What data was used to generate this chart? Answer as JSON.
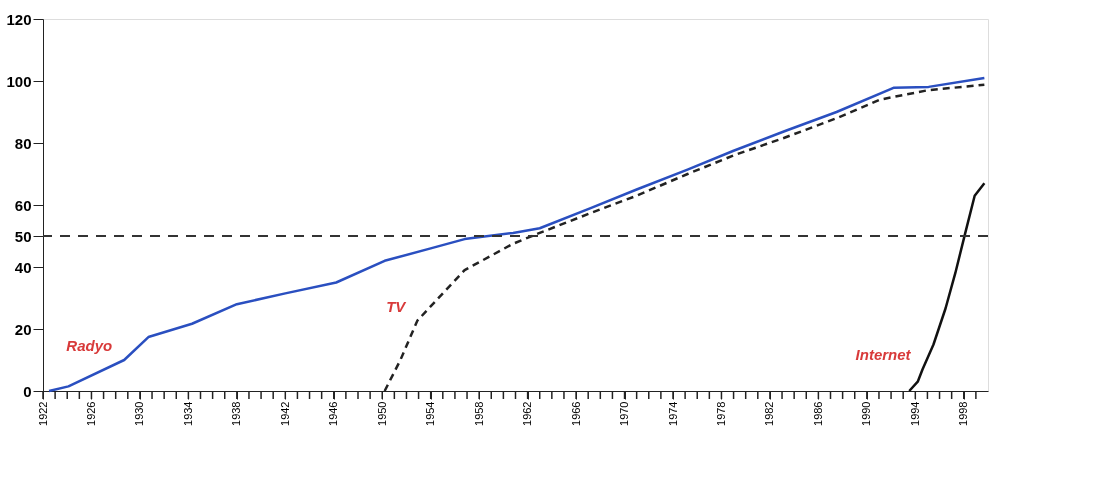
{
  "chart_data": {
    "type": "line",
    "xlim": [
      1922,
      2000
    ],
    "ylim": [
      0,
      120
    ],
    "yticks": [
      0,
      20,
      40,
      50,
      60,
      80,
      100,
      120
    ],
    "xticks": [
      1922,
      {
        "value": 1923,
        "label": null
      },
      {
        "value": 1924,
        "label": null
      },
      {
        "value": 1925,
        "label": null
      },
      1926,
      {
        "value": 1927,
        "label": null
      },
      {
        "value": 1928,
        "label": null
      },
      {
        "value": 1929,
        "label": null
      },
      1930,
      {
        "value": 1931,
        "label": null
      },
      {
        "value": 1932,
        "label": null
      },
      {
        "value": 1933,
        "label": null
      },
      1934,
      {
        "value": 1935,
        "label": null
      },
      {
        "value": 1936,
        "label": null
      },
      {
        "value": 1937,
        "label": null
      },
      1938,
      {
        "value": 1939,
        "label": null
      },
      {
        "value": 1940,
        "label": null
      },
      {
        "value": 1941,
        "label": null
      },
      1942,
      {
        "value": 1943,
        "label": null
      },
      {
        "value": 1944,
        "label": null
      },
      {
        "value": 1945,
        "label": null
      },
      1946,
      {
        "value": 1947,
        "label": null
      },
      {
        "value": 1948,
        "label": null
      },
      {
        "value": 1949,
        "label": null
      },
      1950,
      {
        "value": 1951,
        "label": null
      },
      {
        "value": 1952,
        "label": null
      },
      {
        "value": 1953,
        "label": null
      },
      1954,
      {
        "value": 1955,
        "label": null
      },
      {
        "value": 1956,
        "label": null
      },
      {
        "value": 1957,
        "label": null
      },
      1958,
      {
        "value": 1959,
        "label": null
      },
      {
        "value": 1960,
        "label": null
      },
      {
        "value": 1961,
        "label": null
      },
      1962,
      {
        "value": 1963,
        "label": null
      },
      {
        "value": 1964,
        "label": null
      },
      {
        "value": 1965,
        "label": null
      },
      1966,
      {
        "value": 1967,
        "label": null
      },
      {
        "value": 1968,
        "label": null
      },
      {
        "value": 1969,
        "label": null
      },
      1970,
      {
        "value": 1971,
        "label": null
      },
      {
        "value": 1972,
        "label": null
      },
      {
        "value": 1973,
        "label": null
      },
      1974,
      {
        "value": 1975,
        "label": null
      },
      {
        "value": 1976,
        "label": null
      },
      {
        "value": 1977,
        "label": null
      },
      1978,
      {
        "value": 1979,
        "label": null
      },
      {
        "value": 1980,
        "label": null
      },
      {
        "value": 1981,
        "label": null
      },
      1982,
      {
        "value": 1983,
        "label": null
      },
      {
        "value": 1984,
        "label": null
      },
      {
        "value": 1985,
        "label": null
      },
      1986,
      {
        "value": 1987,
        "label": null
      },
      {
        "value": 1988,
        "label": null
      },
      {
        "value": 1989,
        "label": null
      },
      1990,
      {
        "value": 1991,
        "label": null
      },
      {
        "value": 1992,
        "label": null
      },
      {
        "value": 1993,
        "label": null
      },
      1994,
      {
        "value": 1995,
        "label": null
      },
      {
        "value": 1996,
        "label": null
      },
      {
        "value": 1997,
        "label": null
      },
      1998,
      {
        "value": 1999,
        "label": null
      }
    ],
    "grid": false,
    "legend": false,
    "ref_lines": [
      {
        "axis": "y",
        "value": 50,
        "color": "#333333",
        "line_style": "dashed"
      }
    ],
    "series": [
      {
        "name": "Radyo",
        "color": "#2a4fc0",
        "line_style": "solid",
        "x": [
          1922.5,
          1924.1,
          1928.7,
          1930.7,
          1934.3,
          1938,
          1942,
          1946.2,
          1950.2,
          1954,
          1956.8,
          1960.8,
          1963,
          1967.2,
          1971,
          1975.2,
          1979,
          1983.2,
          1987.5,
          1992.2,
          1995.1,
          1999.7
        ],
        "values": [
          0,
          1.5,
          10,
          17.4,
          21.7,
          28,
          31.5,
          35,
          42,
          46,
          49,
          51,
          52.5,
          59,
          65,
          71.4,
          77.5,
          83.8,
          90,
          97.8,
          98.1,
          101
        ]
      },
      {
        "name": "TV",
        "color": "#222222",
        "line_style": "dashed",
        "x": [
          1950.2,
          1951.5,
          1952.9,
          1956.8,
          1960.8,
          1963,
          1967.2,
          1971,
          1975.2,
          1979,
          1983.2,
          1987.5,
          1991.1,
          1995,
          1999.7
        ],
        "values": [
          0,
          10,
          22.7,
          39,
          47.5,
          51,
          57.4,
          63,
          70,
          76,
          81.7,
          88,
          94,
          97,
          98.8
        ]
      },
      {
        "name": "Internet",
        "color": "#111111",
        "line_style": "solid",
        "x": [
          1993.5,
          1994.2,
          1994.6,
          1995.5,
          1996.5,
          1997.3,
          1998.1,
          1998.9,
          1999.7
        ],
        "values": [
          0,
          3,
          7,
          15,
          26.7,
          38,
          50.6,
          63,
          67
        ]
      }
    ]
  }
}
